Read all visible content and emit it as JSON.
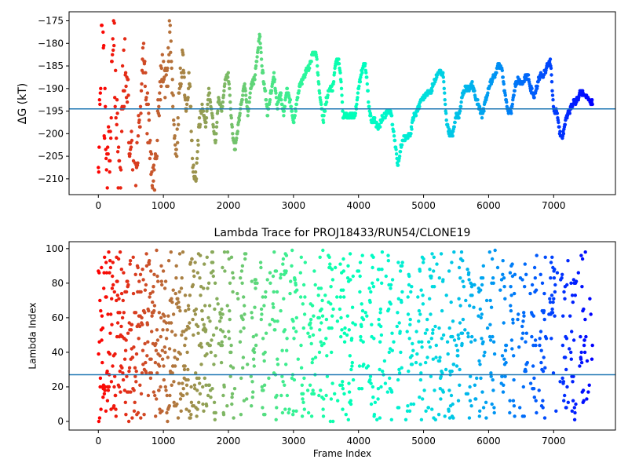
{
  "chart_data": [
    {
      "type": "scatter",
      "title": "",
      "xlabel": "",
      "ylabel": "ΔG (kT)",
      "xlim": [
        -450,
        7950
      ],
      "ylim": [
        -213.5,
        -173
      ],
      "xticks": [
        0,
        1000,
        2000,
        3000,
        4000,
        5000,
        6000,
        7000
      ],
      "yticks": [
        -175,
        -180,
        -185,
        -190,
        -195,
        -200,
        -205,
        -210
      ],
      "hline": -194.5,
      "hline_color": "#1f77b4",
      "colormap": "rainbow (reversed over frame index)",
      "x_range_points": [
        0,
        7600
      ],
      "trace": [
        [
          0,
          -210
        ],
        [
          20,
          -200
        ],
        [
          40,
          -180
        ],
        [
          60,
          -174
        ],
        [
          80,
          -186
        ],
        [
          100,
          -196
        ],
        [
          120,
          -205
        ],
        [
          160,
          -204
        ],
        [
          200,
          -193
        ],
        [
          230,
          -180
        ],
        [
          260,
          -187
        ],
        [
          300,
          -203
        ],
        [
          330,
          -212
        ],
        [
          360,
          -196
        ],
        [
          400,
          -185
        ],
        [
          450,
          -194
        ],
        [
          500,
          -203
        ],
        [
          550,
          -214
        ],
        [
          600,
          -207
        ],
        [
          650,
          -194
        ],
        [
          700,
          -182
        ],
        [
          750,
          -195
        ],
        [
          800,
          -206
        ],
        [
          850,
          -212
        ],
        [
          900,
          -201
        ],
        [
          950,
          -190
        ],
        [
          1000,
          -184
        ],
        [
          1050,
          -192
        ],
        [
          1100,
          -176
        ],
        [
          1150,
          -194
        ],
        [
          1200,
          -205
        ],
        [
          1250,
          -189
        ],
        [
          1300,
          -183
        ],
        [
          1350,
          -196
        ],
        [
          1400,
          -187
        ],
        [
          1450,
          -207
        ],
        [
          1500,
          -210
        ],
        [
          1550,
          -198
        ],
        [
          1600,
          -194
        ],
        [
          1650,
          -198
        ],
        [
          1700,
          -190
        ],
        [
          1750,
          -196
        ],
        [
          1800,
          -202
        ],
        [
          1850,
          -192
        ],
        [
          1900,
          -195
        ],
        [
          1950,
          -188
        ],
        [
          2000,
          -187
        ],
        [
          2050,
          -198
        ],
        [
          2100,
          -204
        ],
        [
          2150,
          -198
        ],
        [
          2200,
          -193
        ],
        [
          2250,
          -189
        ],
        [
          2300,
          -196
        ],
        [
          2350,
          -189
        ],
        [
          2400,
          -188
        ],
        [
          2450,
          -182
        ],
        [
          2480,
          -178
        ],
        [
          2520,
          -186
        ],
        [
          2560,
          -190
        ],
        [
          2600,
          -196
        ],
        [
          2650,
          -191
        ],
        [
          2700,
          -187
        ],
        [
          2750,
          -194
        ],
        [
          2800,
          -191
        ],
        [
          2850,
          -196
        ],
        [
          2900,
          -190
        ],
        [
          2950,
          -193
        ],
        [
          3000,
          -198
        ],
        [
          3050,
          -193
        ],
        [
          3100,
          -189
        ],
        [
          3150,
          -188
        ],
        [
          3200,
          -186
        ],
        [
          3250,
          -185
        ],
        [
          3300,
          -182
        ],
        [
          3350,
          -182
        ],
        [
          3380,
          -188
        ],
        [
          3420,
          -193
        ],
        [
          3460,
          -197
        ],
        [
          3500,
          -193
        ],
        [
          3550,
          -190
        ],
        [
          3600,
          -190
        ],
        [
          3650,
          -184
        ],
        [
          3700,
          -184
        ],
        [
          3730,
          -188
        ],
        [
          3760,
          -196
        ],
        [
          3850,
          -196
        ],
        [
          3950,
          -196
        ],
        [
          4000,
          -190
        ],
        [
          4050,
          -186
        ],
        [
          4100,
          -184.5
        ],
        [
          4130,
          -188
        ],
        [
          4160,
          -194
        ],
        [
          4200,
          -197
        ],
        [
          4250,
          -197
        ],
        [
          4300,
          -199
        ],
        [
          4350,
          -197
        ],
        [
          4400,
          -196
        ],
        [
          4450,
          -195
        ],
        [
          4500,
          -195
        ],
        [
          4540,
          -200
        ],
        [
          4580,
          -204
        ],
        [
          4600,
          -207
        ],
        [
          4620,
          -206
        ],
        [
          4650,
          -203
        ],
        [
          4700,
          -201
        ],
        [
          4750,
          -201
        ],
        [
          4800,
          -200
        ],
        [
          4850,
          -196
        ],
        [
          4900,
          -195
        ],
        [
          4950,
          -193
        ],
        [
          5000,
          -192
        ],
        [
          5050,
          -191
        ],
        [
          5100,
          -191
        ],
        [
          5150,
          -189
        ],
        [
          5200,
          -187
        ],
        [
          5250,
          -186
        ],
        [
          5300,
          -187
        ],
        [
          5330,
          -193
        ],
        [
          5360,
          -198
        ],
        [
          5400,
          -200
        ],
        [
          5450,
          -200
        ],
        [
          5500,
          -196
        ],
        [
          5550,
          -196
        ],
        [
          5600,
          -191
        ],
        [
          5650,
          -190
        ],
        [
          5700,
          -190
        ],
        [
          5750,
          -189
        ],
        [
          5800,
          -192
        ],
        [
          5850,
          -194
        ],
        [
          5900,
          -196
        ],
        [
          5950,
          -193
        ],
        [
          6000,
          -190
        ],
        [
          6050,
          -188
        ],
        [
          6100,
          -187
        ],
        [
          6150,
          -185
        ],
        [
          6200,
          -185
        ],
        [
          6250,
          -191
        ],
        [
          6300,
          -195
        ],
        [
          6350,
          -195
        ],
        [
          6400,
          -190
        ],
        [
          6450,
          -188
        ],
        [
          6500,
          -189
        ],
        [
          6550,
          -188
        ],
        [
          6600,
          -187
        ],
        [
          6650,
          -190
        ],
        [
          6700,
          -192
        ],
        [
          6750,
          -189
        ],
        [
          6800,
          -187
        ],
        [
          6850,
          -187
        ],
        [
          6900,
          -185
        ],
        [
          6950,
          -184
        ],
        [
          7000,
          -195
        ],
        [
          7050,
          -195
        ],
        [
          7100,
          -200
        ],
        [
          7130,
          -201
        ],
        [
          7160,
          -199
        ],
        [
          7200,
          -196
        ],
        [
          7250,
          -195
        ],
        [
          7300,
          -193
        ],
        [
          7350,
          -193
        ],
        [
          7400,
          -191
        ],
        [
          7450,
          -191
        ],
        [
          7500,
          -192
        ],
        [
          7550,
          -193
        ],
        [
          7600,
          -193
        ]
      ]
    },
    {
      "type": "scatter",
      "title": "Lambda Trace for PROJ18433/RUN54/CLONE19",
      "xlabel": "Frame Index",
      "ylabel": "Lambda Index",
      "xlim": [
        -450,
        7950
      ],
      "ylim": [
        -5,
        104
      ],
      "xticks": [
        0,
        1000,
        2000,
        3000,
        4000,
        5000,
        6000,
        7000
      ],
      "yticks": [
        0,
        20,
        40,
        60,
        80,
        100
      ],
      "hline": 27,
      "hline_color": "#1f77b4",
      "colormap": "rainbow (reversed over frame index)",
      "x_range_points": [
        0,
        7600
      ],
      "point_count": 7600,
      "lambda_range": [
        0,
        99
      ]
    }
  ]
}
